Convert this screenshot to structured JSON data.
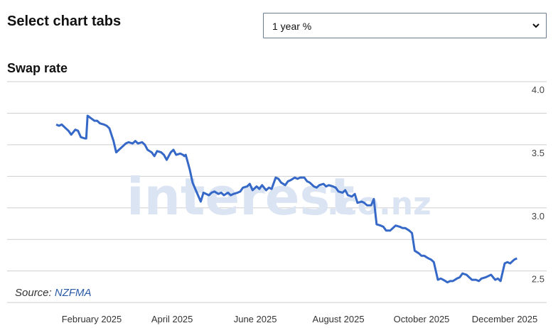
{
  "header": {
    "title": "Select chart tabs",
    "dropdown": {
      "selected": "1 year %"
    }
  },
  "chart_title": "Swap rate",
  "watermark": {
    "main": "interest",
    "suffix": ".co.nz"
  },
  "source": {
    "label": "Source:",
    "value": "NZFMA"
  },
  "colors": {
    "line": "#3568c7",
    "grid": "#cfcfcf",
    "watermark": "#dbe4f3"
  },
  "chart_data": {
    "type": "line",
    "title": "Swap rate",
    "xlabel": "",
    "ylabel": "",
    "ylim": [
      2.2,
      4.0
    ],
    "yticks": [
      2.5,
      3.0,
      3.5,
      4.0
    ],
    "xticks": [
      "February 2025",
      "April 2025",
      "June 2025",
      "August 2025",
      "October 2025",
      "December 2025"
    ],
    "grid": true,
    "series": [
      {
        "name": "",
        "x": [
          "2025-01-06",
          "2025-01-08",
          "2025-01-10",
          "2025-01-13",
          "2025-01-15",
          "2025-01-17",
          "2025-01-20",
          "2025-01-22",
          "2025-01-24",
          "2025-01-27",
          "2025-01-28",
          "2025-01-29",
          "2025-02-03",
          "2025-02-05",
          "2025-02-07",
          "2025-02-10",
          "2025-02-12",
          "2025-02-14",
          "2025-02-17",
          "2025-02-19",
          "2025-02-21",
          "2025-02-24",
          "2025-02-26",
          "2025-02-28",
          "2025-03-03",
          "2025-03-05",
          "2025-03-07",
          "2025-03-10",
          "2025-03-12",
          "2025-03-14",
          "2025-03-17",
          "2025-03-19",
          "2025-03-21",
          "2025-03-24",
          "2025-03-26",
          "2025-03-28",
          "2025-03-31",
          "2025-04-02",
          "2025-04-04",
          "2025-04-07",
          "2025-04-09",
          "2025-04-10",
          "2025-04-11",
          "2025-04-14",
          "2025-04-16",
          "2025-04-18",
          "2025-04-22",
          "2025-04-24",
          "2025-04-28",
          "2025-04-30",
          "2025-05-02",
          "2025-05-05",
          "2025-05-07",
          "2025-05-09",
          "2025-05-12",
          "2025-05-14",
          "2025-05-16",
          "2025-05-19",
          "2025-05-21",
          "2025-05-23",
          "2025-05-26",
          "2025-05-28",
          "2025-05-30",
          "2025-06-02",
          "2025-06-04",
          "2025-06-06",
          "2025-06-09",
          "2025-06-11",
          "2025-06-13",
          "2025-06-16",
          "2025-06-18",
          "2025-06-20",
          "2025-06-23",
          "2025-06-25",
          "2025-06-27",
          "2025-06-30",
          "2025-07-02",
          "2025-07-04",
          "2025-07-07",
          "2025-07-09",
          "2025-07-11",
          "2025-07-14",
          "2025-07-16",
          "2025-07-18",
          "2025-07-21",
          "2025-07-23",
          "2025-07-25",
          "2025-07-28",
          "2025-07-30",
          "2025-08-01",
          "2025-08-04",
          "2025-08-06",
          "2025-08-08",
          "2025-08-11",
          "2025-08-13",
          "2025-08-15",
          "2025-08-18",
          "2025-08-20",
          "2025-08-22",
          "2025-08-25",
          "2025-08-27",
          "2025-08-29",
          "2025-09-01",
          "2025-09-03",
          "2025-09-05",
          "2025-09-08",
          "2025-09-10",
          "2025-09-12",
          "2025-09-15",
          "2025-09-17",
          "2025-09-19",
          "2025-09-22",
          "2025-09-24",
          "2025-09-26",
          "2025-09-29",
          "2025-10-01",
          "2025-10-03",
          "2025-10-06",
          "2025-10-08",
          "2025-10-10",
          "2025-10-13",
          "2025-10-15",
          "2025-10-17",
          "2025-10-20",
          "2025-10-22",
          "2025-10-24",
          "2025-10-27",
          "2025-10-29",
          "2025-10-31",
          "2025-11-03",
          "2025-11-05",
          "2025-11-07",
          "2025-11-10",
          "2025-11-12",
          "2025-11-14",
          "2025-11-17",
          "2025-11-19",
          "2025-11-21",
          "2025-11-24",
          "2025-11-26",
          "2025-11-28",
          "2025-12-01",
          "2025-12-03",
          "2025-12-05",
          "2025-12-08",
          "2025-12-10"
        ],
        "y": [
          3.66,
          3.65,
          3.66,
          3.63,
          3.61,
          3.58,
          3.62,
          3.61,
          3.56,
          3.55,
          3.55,
          3.73,
          3.69,
          3.69,
          3.67,
          3.66,
          3.65,
          3.63,
          3.53,
          3.44,
          3.46,
          3.49,
          3.51,
          3.52,
          3.51,
          3.53,
          3.51,
          3.52,
          3.5,
          3.46,
          3.44,
          3.41,
          3.45,
          3.44,
          3.42,
          3.38,
          3.44,
          3.46,
          3.42,
          3.43,
          3.42,
          3.41,
          3.42,
          3.3,
          3.2,
          3.15,
          3.05,
          3.12,
          3.1,
          3.12,
          3.13,
          3.11,
          3.12,
          3.1,
          3.12,
          3.1,
          3.11,
          3.12,
          3.13,
          3.16,
          3.17,
          3.19,
          3.14,
          3.17,
          3.15,
          3.18,
          3.14,
          3.16,
          3.15,
          3.24,
          3.23,
          3.2,
          3.18,
          3.21,
          3.22,
          3.24,
          3.23,
          3.24,
          3.24,
          3.21,
          3.2,
          3.17,
          3.16,
          3.18,
          3.19,
          3.17,
          3.18,
          3.17,
          3.16,
          3.13,
          3.12,
          3.14,
          3.1,
          3.09,
          3.11,
          3.04,
          3.05,
          3.04,
          3.02,
          3.02,
          3.07,
          2.87,
          2.86,
          2.85,
          2.82,
          2.82,
          2.84,
          2.86,
          2.85,
          2.84,
          2.84,
          2.82,
          2.8,
          2.66,
          2.64,
          2.62,
          2.62,
          2.6,
          2.59,
          2.57,
          2.43,
          2.44,
          2.43,
          2.41,
          2.42,
          2.42,
          2.44,
          2.45,
          2.48,
          2.47,
          2.45,
          2.43,
          2.43,
          2.42,
          2.44,
          2.45,
          2.46,
          2.47,
          2.43,
          2.44,
          2.42,
          2.56,
          2.57,
          2.56,
          2.59,
          2.6
        ]
      }
    ]
  }
}
